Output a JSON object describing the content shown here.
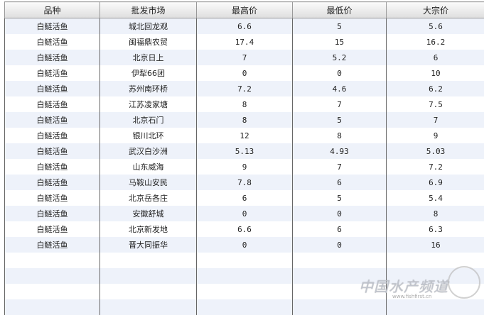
{
  "headers": [
    "品种",
    "批发市场",
    "最高价",
    "最低价",
    "大宗价"
  ],
  "rows": [
    [
      "白鲢活鱼",
      "城北回龙观",
      "6.6",
      "5",
      "5.6"
    ],
    [
      "白鲢活鱼",
      "闽福鼎农贸",
      "17.4",
      "15",
      "16.2"
    ],
    [
      "白鲢活鱼",
      "北京日上",
      "7",
      "5.2",
      "6"
    ],
    [
      "白鲢活鱼",
      "伊犁66团",
      "0",
      "0",
      "10"
    ],
    [
      "白鲢活鱼",
      "苏州南环桥",
      "7.2",
      "4.6",
      "6.2"
    ],
    [
      "白鲢活鱼",
      "江苏凌家塘",
      "8",
      "7",
      "7.5"
    ],
    [
      "白鲢活鱼",
      "北京石门",
      "8",
      "5",
      "7"
    ],
    [
      "白鲢活鱼",
      "银川北环",
      "12",
      "8",
      "9"
    ],
    [
      "白鲢活鱼",
      "武汉白沙洲",
      "5.13",
      "4.93",
      "5.03"
    ],
    [
      "白鲢活鱼",
      "山东威海",
      "9",
      "7",
      "7.2"
    ],
    [
      "白鲢活鱼",
      "马鞍山安民",
      "7.8",
      "6",
      "6.9"
    ],
    [
      "白鲢活鱼",
      "北京岳各庄",
      "6",
      "5",
      "5.4"
    ],
    [
      "白鲢活鱼",
      "安徽舒城",
      "0",
      "0",
      "8"
    ],
    [
      "白鲢活鱼",
      "北京新发地",
      "6.6",
      "6",
      "6.3"
    ],
    [
      "白鲢活鱼",
      "晋大同振华",
      "0",
      "0",
      "16"
    ]
  ],
  "watermark": {
    "text": "中国水产频道",
    "url": "www.fishfirst.cn"
  }
}
